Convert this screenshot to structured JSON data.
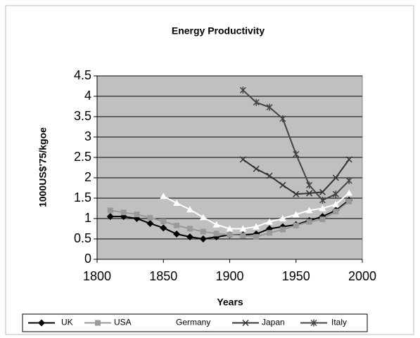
{
  "chart_data": {
    "type": "line",
    "title": "Energy Productivity",
    "x_label": "Years",
    "y_label": "1000US$'75/kgoe",
    "x": [
      1810,
      1820,
      1830,
      1840,
      1850,
      1860,
      1870,
      1880,
      1890,
      1900,
      1910,
      1920,
      1930,
      1940,
      1950,
      1960,
      1970,
      1980,
      1990
    ],
    "series": [
      {
        "name": "UK",
        "color": "#000000",
        "marker": "diamond",
        "values": [
          1.05,
          1.05,
          1.0,
          0.88,
          0.77,
          0.62,
          0.55,
          0.5,
          0.55,
          0.6,
          0.6,
          0.62,
          0.75,
          0.8,
          0.85,
          0.95,
          1.05,
          1.2,
          1.45
        ]
      },
      {
        "name": "USA",
        "color": "#999999",
        "marker": "square",
        "values": [
          1.2,
          1.15,
          1.1,
          1.02,
          0.93,
          0.83,
          0.75,
          0.68,
          0.63,
          0.6,
          0.58,
          0.55,
          0.65,
          0.73,
          0.83,
          0.92,
          0.98,
          1.17,
          1.42
        ]
      },
      {
        "name": "Germany",
        "color": "#ffffff",
        "marker": "triangle",
        "values": [
          null,
          null,
          null,
          null,
          1.55,
          1.38,
          1.22,
          1.03,
          0.85,
          0.75,
          0.75,
          0.8,
          0.92,
          1.0,
          1.1,
          1.2,
          1.25,
          1.35,
          1.63
        ]
      },
      {
        "name": "Japan",
        "color": "#333333",
        "marker": "x",
        "values": [
          null,
          null,
          null,
          null,
          null,
          null,
          null,
          null,
          null,
          null,
          2.45,
          2.22,
          2.05,
          1.82,
          1.6,
          1.62,
          1.65,
          2.0,
          2.45
        ]
      },
      {
        "name": "Italy",
        "color": "#444444",
        "marker": "star",
        "values": [
          null,
          null,
          null,
          null,
          null,
          null,
          null,
          null,
          null,
          null,
          4.15,
          3.85,
          3.73,
          3.45,
          2.58,
          1.82,
          1.45,
          1.6,
          1.93
        ]
      }
    ],
    "xlim": [
      1800,
      2000
    ],
    "xticks": [
      1800,
      1850,
      1900,
      1950,
      2000
    ],
    "ylim": [
      0,
      4.5
    ],
    "yticks": [
      0,
      0.5,
      1,
      1.5,
      2,
      2.5,
      3,
      3.5,
      4,
      4.5
    ],
    "grid": true,
    "legend": "bottom",
    "plot_background": "#c0c0c0"
  }
}
